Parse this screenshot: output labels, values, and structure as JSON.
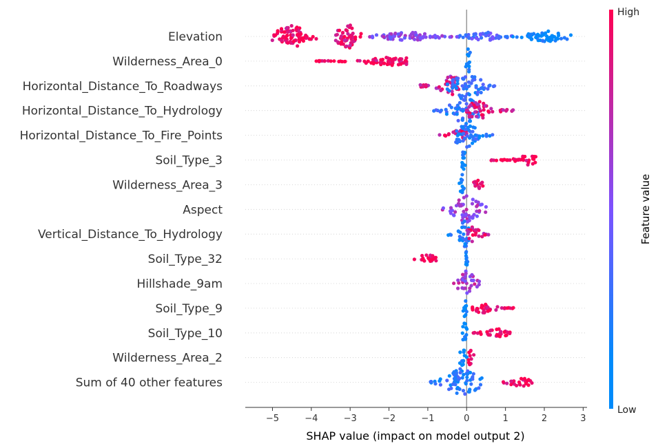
{
  "chart_data": {
    "type": "scatter",
    "subtype": "shap-beeswarm",
    "xlabel": "SHAP value (impact on model output 2)",
    "xlim": [
      -5.7,
      3.1
    ],
    "xticks": [
      -5,
      -4,
      -3,
      -2,
      -1,
      0,
      1,
      2,
      3
    ],
    "xtick_labels": [
      "−5",
      "−4",
      "−3",
      "−2",
      "−1",
      "0",
      "1",
      "2",
      "3"
    ],
    "colorbar": {
      "title": "Feature value",
      "high_label": "High",
      "low_label": "Low",
      "low_color": "#008bfb",
      "mid_color": "#7c52ff",
      "high_color": "#ff0051"
    },
    "features": [
      {
        "name": "Elevation",
        "clusters": [
          {
            "lo": -5.35,
            "hi": -3.55,
            "center": -4.5,
            "spread": 1.0,
            "color": 0.95,
            "peak": 0.45
          },
          {
            "lo": -3.6,
            "hi": -2.5,
            "center": -3.05,
            "spread": 1.0,
            "color": 0.9,
            "peak": 0.5
          },
          {
            "lo": -2.6,
            "hi": -0.3,
            "center": -1.5,
            "spread": 0.35,
            "color": 0.55,
            "peak": 0.18
          },
          {
            "lo": -0.3,
            "hi": 1.2,
            "center": 0.5,
            "spread": 0.35,
            "color": 0.35,
            "peak": 0.18
          },
          {
            "lo": 1.0,
            "hi": 2.75,
            "center": 2.1,
            "spread": 0.5,
            "color": 0.05,
            "peak": 0.22
          }
        ]
      },
      {
        "name": "Wilderness_Area_0",
        "clusters": [
          {
            "lo": -3.9,
            "hi": -1.55,
            "center": -1.9,
            "spread": 0.5,
            "color": 0.95,
            "peak": 0.18
          },
          {
            "lo": -0.05,
            "hi": 0.25,
            "center": 0.05,
            "spread": 1.0,
            "color": 0.02,
            "peak": 0.55
          }
        ]
      },
      {
        "name": "Horizontal_Distance_To_Roadways",
        "clusters": [
          {
            "lo": -1.2,
            "hi": -0.2,
            "center": -0.4,
            "spread": 0.5,
            "color": 0.8,
            "peak": 0.45
          },
          {
            "lo": -0.5,
            "hi": 0.75,
            "center": 0.0,
            "spread": 0.6,
            "color": 0.2,
            "peak": 0.6
          }
        ]
      },
      {
        "name": "Horizontal_Distance_To_Hydrology",
        "clusters": [
          {
            "lo": -0.85,
            "hi": 0.3,
            "center": -0.05,
            "spread": 0.8,
            "color": 0.2,
            "peak": 0.6
          },
          {
            "lo": 0.0,
            "hi": 1.2,
            "center": 0.3,
            "spread": 0.45,
            "color": 0.85,
            "peak": 0.4
          }
        ]
      },
      {
        "name": "Horizontal_Distance_To_Fire_Points",
        "clusters": [
          {
            "lo": -0.7,
            "hi": 0.0,
            "center": -0.15,
            "spread": 0.6,
            "color": 0.85,
            "peak": 0.3
          },
          {
            "lo": -0.3,
            "hi": 0.7,
            "center": 0.0,
            "spread": 0.7,
            "color": 0.15,
            "peak": 0.55
          }
        ]
      },
      {
        "name": "Soil_Type_3",
        "clusters": [
          {
            "lo": -0.15,
            "hi": 0.05,
            "center": -0.08,
            "spread": 1.0,
            "color": 0.02,
            "peak": 0.5
          },
          {
            "lo": 0.6,
            "hi": 1.8,
            "center": 1.6,
            "spread": 0.25,
            "color": 0.98,
            "peak": 0.2
          }
        ]
      },
      {
        "name": "Wilderness_Area_3",
        "clusters": [
          {
            "lo": -0.25,
            "hi": 0.0,
            "center": -0.1,
            "spread": 1.0,
            "color": 0.02,
            "peak": 0.5
          },
          {
            "lo": 0.1,
            "hi": 0.6,
            "center": 0.3,
            "spread": 0.7,
            "color": 0.98,
            "peak": 0.2
          }
        ]
      },
      {
        "name": "Aspect",
        "clusters": [
          {
            "lo": -0.65,
            "hi": 0.5,
            "center": 0.0,
            "spread": 0.6,
            "color": 0.6,
            "peak": 0.55
          }
        ]
      },
      {
        "name": "Vertical_Distance_To_Hydrology",
        "clusters": [
          {
            "lo": -0.5,
            "hi": 0.05,
            "center": -0.05,
            "spread": 0.7,
            "color": 0.15,
            "peak": 0.55
          },
          {
            "lo": 0.0,
            "hi": 0.65,
            "center": 0.15,
            "spread": 0.5,
            "color": 0.85,
            "peak": 0.35
          }
        ]
      },
      {
        "name": "Soil_Type_32",
        "clusters": [
          {
            "lo": -1.35,
            "hi": -0.6,
            "center": -1.0,
            "spread": 0.8,
            "color": 0.98,
            "peak": 0.2
          },
          {
            "lo": -0.05,
            "hi": 0.05,
            "center": 0.0,
            "spread": 1.0,
            "color": 0.02,
            "peak": 0.4
          }
        ]
      },
      {
        "name": "Hillshade_9am",
        "clusters": [
          {
            "lo": -0.35,
            "hi": 0.35,
            "center": 0.0,
            "spread": 0.6,
            "color": 0.65,
            "peak": 0.55
          }
        ]
      },
      {
        "name": "Soil_Type_9",
        "clusters": [
          {
            "lo": -0.1,
            "hi": 0.05,
            "center": -0.05,
            "spread": 1.0,
            "color": 0.02,
            "peak": 0.45
          },
          {
            "lo": 0.15,
            "hi": 1.4,
            "center": 0.4,
            "spread": 0.6,
            "color": 0.98,
            "peak": 0.2
          }
        ]
      },
      {
        "name": "Soil_Type_10",
        "clusters": [
          {
            "lo": -0.15,
            "hi": 0.05,
            "center": -0.05,
            "spread": 1.0,
            "color": 0.02,
            "peak": 0.45
          },
          {
            "lo": 0.15,
            "hi": 1.15,
            "center": 0.75,
            "spread": 0.5,
            "color": 0.98,
            "peak": 0.2
          }
        ]
      },
      {
        "name": "Wilderness_Area_2",
        "clusters": [
          {
            "lo": -0.3,
            "hi": 0.0,
            "center": -0.1,
            "spread": 1.0,
            "color": 0.02,
            "peak": 0.4
          },
          {
            "lo": 0.0,
            "hi": 0.25,
            "center": 0.1,
            "spread": 1.0,
            "color": 0.95,
            "peak": 0.35
          }
        ]
      },
      {
        "name": "Sum of 40 other features",
        "clusters": [
          {
            "lo": -1.0,
            "hi": 0.4,
            "center": -0.1,
            "spread": 0.5,
            "color": 0.15,
            "peak": 0.6
          },
          {
            "lo": 0.9,
            "hi": 1.75,
            "center": 1.4,
            "spread": 0.5,
            "color": 0.95,
            "peak": 0.2
          }
        ]
      }
    ]
  }
}
